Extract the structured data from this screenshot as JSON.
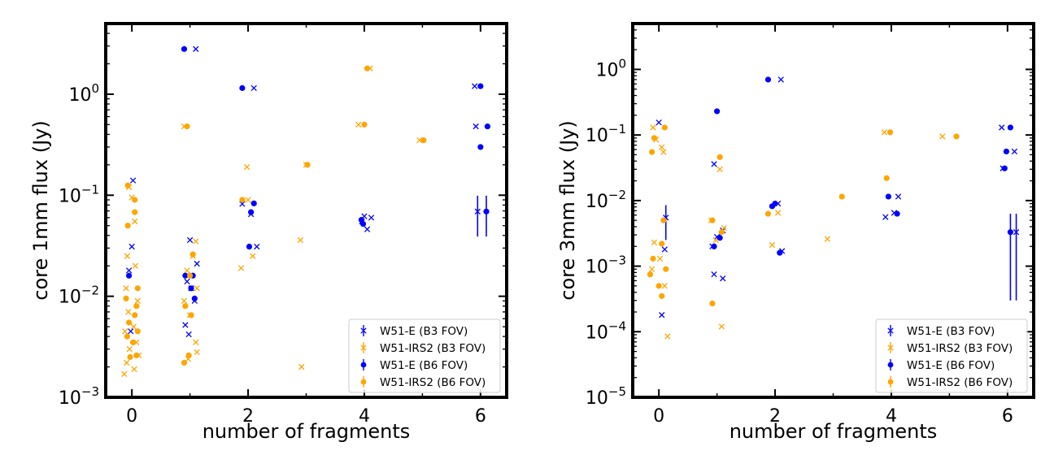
{
  "colors": {
    "w51e": "#0000ff",
    "w51irs2": "#ffa500",
    "frame": "#000000"
  },
  "chart_data": [
    {
      "type": "scatter",
      "xlabel": "number of fragments",
      "ylabel": "core 1mm flux (Jy)",
      "yscale": "log",
      "xlim": [
        -0.45,
        6.45
      ],
      "ylim": [
        0.001,
        5
      ],
      "xticks": [
        0,
        2,
        4,
        6
      ],
      "yticks": [
        {
          "value": 0.001,
          "label": "10",
          "exp": "−3"
        },
        {
          "value": 0.01,
          "label": "10",
          "exp": "−2"
        },
        {
          "value": 0.1,
          "label": "10",
          "exp": "−1"
        },
        {
          "value": 1,
          "label": "10",
          "exp": "0"
        }
      ],
      "legend": {
        "position": "lower-right",
        "entries": [
          "W51-E (B3 FOV)",
          "W51-IRS2 (B3 FOV)",
          "W51-E (B6 FOV)",
          "W51-IRS2 (B6 FOV)"
        ]
      },
      "series": [
        {
          "name": "W51-E (B3 FOV)",
          "marker": "x",
          "color": "#0000ff",
          "points": [
            {
              "x": -0.05,
              "y": 0.018
            },
            {
              "x": 0.02,
              "y": 0.14
            },
            {
              "x": 0.0,
              "y": 0.031
            },
            {
              "x": -0.02,
              "y": 0.0045
            },
            {
              "x": 1.1,
              "y": 2.8
            },
            {
              "x": 1.0,
              "y": 0.036
            },
            {
              "x": 1.12,
              "y": 0.021
            },
            {
              "x": 0.95,
              "y": 0.014
            },
            {
              "x": 1.02,
              "y": 0.012
            },
            {
              "x": 0.98,
              "y": 0.0042
            },
            {
              "x": 1.08,
              "y": 0.009
            },
            {
              "x": 0.92,
              "y": 0.0052
            },
            {
              "x": 2.1,
              "y": 1.15
            },
            {
              "x": 1.9,
              "y": 0.082
            },
            {
              "x": 2.05,
              "y": 0.065
            },
            {
              "x": 2.15,
              "y": 0.031
            },
            {
              "x": 4.0,
              "y": 0.062
            },
            {
              "x": 4.05,
              "y": 0.046
            },
            {
              "x": 4.12,
              "y": 0.06
            },
            {
              "x": 3.96,
              "y": 0.055
            },
            {
              "x": 5.9,
              "y": 1.2
            },
            {
              "x": 5.92,
              "y": 0.48
            },
            {
              "x": 5.95,
              "y": 0.069,
              "err": 0.03
            }
          ]
        },
        {
          "name": "W51-IRS2 (B3 FOV)",
          "marker": "x",
          "color": "#ffa500",
          "points": [
            {
              "x": -0.05,
              "y": 0.12
            },
            {
              "x": 0.0,
              "y": 0.095
            },
            {
              "x": 0.05,
              "y": 0.055
            },
            {
              "x": -0.08,
              "y": 0.025
            },
            {
              "x": 0.06,
              "y": 0.02
            },
            {
              "x": -0.1,
              "y": 0.012
            },
            {
              "x": 0.1,
              "y": 0.009
            },
            {
              "x": -0.06,
              "y": 0.007
            },
            {
              "x": 0.03,
              "y": 0.005
            },
            {
              "x": -0.12,
              "y": 0.0045
            },
            {
              "x": 0.08,
              "y": 0.0035
            },
            {
              "x": -0.04,
              "y": 0.003
            },
            {
              "x": 0.12,
              "y": 0.0026
            },
            {
              "x": -0.09,
              "y": 0.0022
            },
            {
              "x": 0.04,
              "y": 0.0019
            },
            {
              "x": -0.13,
              "y": 0.0017
            },
            {
              "x": 0.9,
              "y": 0.48
            },
            {
              "x": 1.1,
              "y": 0.035
            },
            {
              "x": 1.05,
              "y": 0.025
            },
            {
              "x": 0.95,
              "y": 0.018
            },
            {
              "x": 1.12,
              "y": 0.012
            },
            {
              "x": 0.9,
              "y": 0.009
            },
            {
              "x": 1.0,
              "y": 0.0065
            },
            {
              "x": 1.1,
              "y": 0.0035
            },
            {
              "x": 1.12,
              "y": 0.0028
            },
            {
              "x": 0.97,
              "y": 0.0024
            },
            {
              "x": 1.98,
              "y": 0.19
            },
            {
              "x": 2.08,
              "y": 0.025
            },
            {
              "x": 1.88,
              "y": 0.019
            },
            {
              "x": 2.0,
              "y": 0.09
            },
            {
              "x": 2.9,
              "y": 0.036
            },
            {
              "x": 2.92,
              "y": 0.002
            },
            {
              "x": 3.0,
              "y": 0.2
            },
            {
              "x": 4.1,
              "y": 1.8
            },
            {
              "x": 3.9,
              "y": 0.5
            },
            {
              "x": 4.95,
              "y": 0.35
            }
          ]
        },
        {
          "name": "W51-E (B6 FOV)",
          "marker": "o",
          "color": "#0000ff",
          "points": [
            {
              "x": -0.05,
              "y": 0.016
            },
            {
              "x": 0.9,
              "y": 2.8
            },
            {
              "x": 1.05,
              "y": 0.016
            },
            {
              "x": 1.02,
              "y": 0.012
            },
            {
              "x": 0.92,
              "y": 0.016
            },
            {
              "x": 1.08,
              "y": 0.0095
            },
            {
              "x": 1.9,
              "y": 1.15
            },
            {
              "x": 2.1,
              "y": 0.083
            },
            {
              "x": 2.05,
              "y": 0.068
            },
            {
              "x": 2.02,
              "y": 0.031
            },
            {
              "x": 3.95,
              "y": 0.057
            },
            {
              "x": 3.98,
              "y": 0.052
            },
            {
              "x": 6.0,
              "y": 1.2
            },
            {
              "x": 6.0,
              "y": 0.3
            },
            {
              "x": 6.12,
              "y": 0.48
            },
            {
              "x": 6.1,
              "y": 0.069,
              "err": 0.03
            }
          ]
        },
        {
          "name": "W51-IRS2 (B6 FOV)",
          "marker": "o",
          "color": "#ffa500",
          "points": [
            {
              "x": -0.07,
              "y": 0.125
            },
            {
              "x": 0.05,
              "y": 0.09
            },
            {
              "x": 0.05,
              "y": 0.068
            },
            {
              "x": -0.07,
              "y": 0.05
            },
            {
              "x": 0.1,
              "y": 0.012
            },
            {
              "x": -0.1,
              "y": 0.0095
            },
            {
              "x": 0.08,
              "y": 0.008
            },
            {
              "x": 0.05,
              "y": 0.0065
            },
            {
              "x": -0.05,
              "y": 0.0055
            },
            {
              "x": 0.1,
              "y": 0.0045
            },
            {
              "x": -0.08,
              "y": 0.004
            },
            {
              "x": 0.02,
              "y": 0.0035
            },
            {
              "x": 0.08,
              "y": 0.0026
            },
            {
              "x": -0.03,
              "y": 0.0025
            },
            {
              "x": 0.95,
              "y": 0.48
            },
            {
              "x": 1.05,
              "y": 0.026
            },
            {
              "x": 1.0,
              "y": 0.016
            },
            {
              "x": 0.92,
              "y": 0.008
            },
            {
              "x": 1.02,
              "y": 0.0065
            },
            {
              "x": 0.98,
              "y": 0.0026
            },
            {
              "x": 0.9,
              "y": 0.0022
            },
            {
              "x": 1.9,
              "y": 0.09
            },
            {
              "x": 3.02,
              "y": 0.2
            },
            {
              "x": 4.05,
              "y": 1.8
            },
            {
              "x": 4.0,
              "y": 0.5
            },
            {
              "x": 5.02,
              "y": 0.35
            }
          ]
        }
      ]
    },
    {
      "type": "scatter",
      "xlabel": "number of fragments",
      "ylabel": "core 3mm flux (Jy)",
      "yscale": "log",
      "xlim": [
        -0.45,
        6.45
      ],
      "ylim": [
        1e-05,
        5
      ],
      "xticks": [
        0,
        2,
        4,
        6
      ],
      "yticks": [
        {
          "value": 1e-05,
          "label": "10",
          "exp": "−5"
        },
        {
          "value": 0.0001,
          "label": "10",
          "exp": "−4"
        },
        {
          "value": 0.001,
          "label": "10",
          "exp": "−3"
        },
        {
          "value": 0.01,
          "label": "10",
          "exp": "−2"
        },
        {
          "value": 0.1,
          "label": "10",
          "exp": "−1"
        },
        {
          "value": 1,
          "label": "10",
          "exp": "0"
        }
      ],
      "legend": {
        "position": "lower-right",
        "entries": [
          "W51-E (B3 FOV)",
          "W51-IRS2 (B3 FOV)",
          "W51-E (B6 FOV)",
          "W51-IRS2 (B6 FOV)"
        ]
      },
      "series": [
        {
          "name": "W51-E (B3 FOV)",
          "marker": "x",
          "color": "#0000ff",
          "points": [
            {
              "x": 0.0,
              "y": 0.155
            },
            {
              "x": 0.12,
              "y": 0.0055,
              "err": 0.003
            },
            {
              "x": 0.1,
              "y": 0.0018
            },
            {
              "x": 0.05,
              "y": 0.00018
            },
            {
              "x": 0.95,
              "y": 0.036
            },
            {
              "x": 1.0,
              "y": 0.0028
            },
            {
              "x": 1.1,
              "y": 0.0035
            },
            {
              "x": 0.92,
              "y": 0.002
            },
            {
              "x": 0.95,
              "y": 0.00075
            },
            {
              "x": 1.1,
              "y": 0.00065
            },
            {
              "x": 2.1,
              "y": 0.7
            },
            {
              "x": 2.05,
              "y": 0.009
            },
            {
              "x": 2.12,
              "y": 0.0017
            },
            {
              "x": 3.9,
              "y": 0.0056
            },
            {
              "x": 4.05,
              "y": 0.0065
            },
            {
              "x": 4.12,
              "y": 0.0115
            },
            {
              "x": 5.9,
              "y": 0.13
            },
            {
              "x": 5.92,
              "y": 0.031
            },
            {
              "x": 6.12,
              "y": 0.056
            },
            {
              "x": 6.15,
              "y": 0.0033,
              "err": 0.003
            }
          ]
        },
        {
          "name": "W51-IRS2 (B3 FOV)",
          "marker": "x",
          "color": "#ffa500",
          "points": [
            {
              "x": -0.1,
              "y": 0.13
            },
            {
              "x": -0.05,
              "y": 0.085
            },
            {
              "x": 0.05,
              "y": 0.065
            },
            {
              "x": 0.08,
              "y": 0.055
            },
            {
              "x": -0.08,
              "y": 0.0023
            },
            {
              "x": 0.02,
              "y": 0.0013
            },
            {
              "x": -0.12,
              "y": 0.0009
            },
            {
              "x": 0.1,
              "y": 0.0005
            },
            {
              "x": 0.15,
              "y": 8.5e-05
            },
            {
              "x": 0.9,
              "y": 0.005
            },
            {
              "x": 1.05,
              "y": 0.03
            },
            {
              "x": 1.12,
              "y": 0.0038
            },
            {
              "x": 0.98,
              "y": 0.0025
            },
            {
              "x": 1.08,
              "y": 0.00012
            },
            {
              "x": 1.95,
              "y": 0.0021
            },
            {
              "x": 2.05,
              "y": 0.0065
            },
            {
              "x": 2.9,
              "y": 0.0026
            },
            {
              "x": 3.88,
              "y": 0.11
            },
            {
              "x": 4.88,
              "y": 0.095
            }
          ]
        },
        {
          "name": "W51-E (B6 FOV)",
          "marker": "o",
          "color": "#0000ff",
          "points": [
            {
              "x": 1.0,
              "y": 0.23
            },
            {
              "x": 1.05,
              "y": 0.0027
            },
            {
              "x": 0.95,
              "y": 0.002
            },
            {
              "x": 1.88,
              "y": 0.7
            },
            {
              "x": 1.95,
              "y": 0.0082
            },
            {
              "x": 2.0,
              "y": 0.009
            },
            {
              "x": 2.08,
              "y": 0.0016
            },
            {
              "x": 3.95,
              "y": 0.0115
            },
            {
              "x": 4.1,
              "y": 0.0063
            },
            {
              "x": 5.95,
              "y": 0.031
            },
            {
              "x": 6.05,
              "y": 0.13
            },
            {
              "x": 5.98,
              "y": 0.056
            },
            {
              "x": 6.05,
              "y": 0.0033,
              "err": 0.003
            }
          ]
        },
        {
          "name": "W51-IRS2 (B6 FOV)",
          "marker": "o",
          "color": "#ffa500",
          "points": [
            {
              "x": -0.12,
              "y": 0.055
            },
            {
              "x": -0.08,
              "y": 0.09
            },
            {
              "x": 0.1,
              "y": 0.13
            },
            {
              "x": 0.08,
              "y": 0.005
            },
            {
              "x": 0.05,
              "y": 0.0022
            },
            {
              "x": -0.1,
              "y": 0.0013
            },
            {
              "x": 0.12,
              "y": 0.0009
            },
            {
              "x": -0.15,
              "y": 0.00075
            },
            {
              "x": 0.0,
              "y": 0.0005
            },
            {
              "x": 0.05,
              "y": 0.00035
            },
            {
              "x": 0.92,
              "y": 0.005
            },
            {
              "x": 1.05,
              "y": 0.046
            },
            {
              "x": 1.08,
              "y": 0.0033
            },
            {
              "x": 0.92,
              "y": 0.00027
            },
            {
              "x": 1.88,
              "y": 0.0063
            },
            {
              "x": 3.15,
              "y": 0.0115
            },
            {
              "x": 3.92,
              "y": 0.022
            },
            {
              "x": 3.98,
              "y": 0.11
            },
            {
              "x": 5.12,
              "y": 0.095
            }
          ]
        }
      ]
    }
  ]
}
